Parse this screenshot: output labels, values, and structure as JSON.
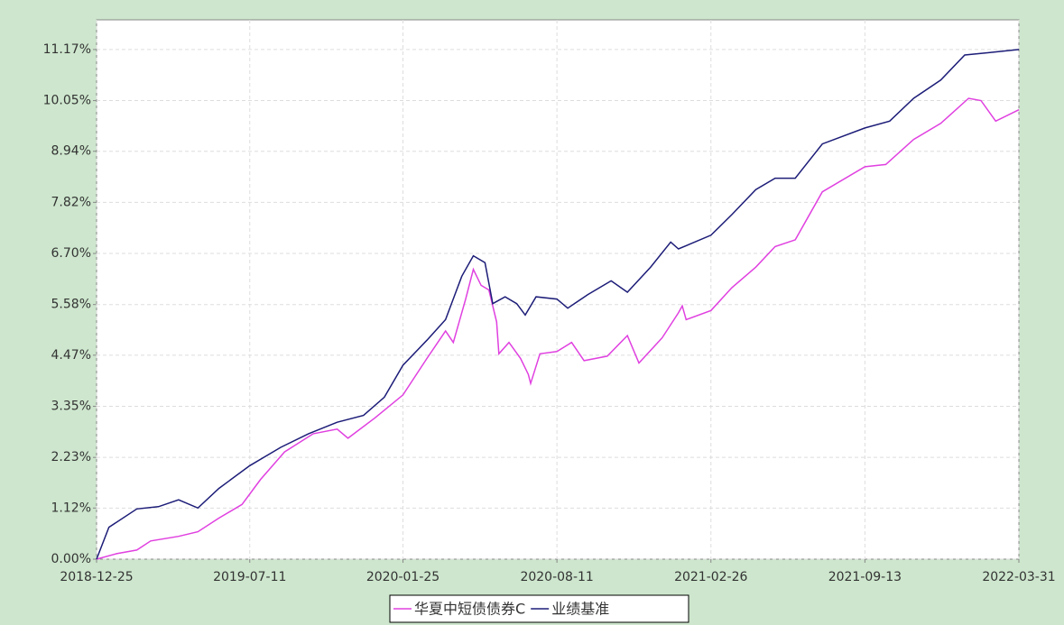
{
  "chart_data": {
    "type": "line",
    "xlim": [
      "2018-12-25",
      "2022-03-31"
    ],
    "xticks": [
      "2018-12-25",
      "2019-07-11",
      "2020-01-25",
      "2020-08-11",
      "2021-02-26",
      "2021-09-13",
      "2022-03-31"
    ],
    "ylim": [
      0,
      11.82
    ],
    "yticks": [
      {
        "value": 0,
        "label": "0.00%"
      },
      {
        "value": 1.12,
        "label": "1.12%"
      },
      {
        "value": 2.23,
        "label": "2.23%"
      },
      {
        "value": 3.35,
        "label": "3.35%"
      },
      {
        "value": 4.47,
        "label": "4.47%"
      },
      {
        "value": 5.58,
        "label": "5.58%"
      },
      {
        "value": 6.7,
        "label": "6.70%"
      },
      {
        "value": 7.82,
        "label": "7.82%"
      },
      {
        "value": 8.94,
        "label": "8.94%"
      },
      {
        "value": 10.05,
        "label": "10.05%"
      },
      {
        "value": 11.17,
        "label": "11.17%"
      }
    ],
    "grid": true,
    "series": [
      {
        "name": "华夏中短债债券C",
        "color": "#e040e0",
        "x": [
          "2018-12-25",
          "2019-01-20",
          "2019-02-15",
          "2019-03-05",
          "2019-04-10",
          "2019-05-05",
          "2019-06-01",
          "2019-07-01",
          "2019-07-25",
          "2019-08-25",
          "2019-10-01",
          "2019-11-01",
          "2019-11-15",
          "2019-12-20",
          "2020-01-25",
          "2020-02-25",
          "2020-03-20",
          "2020-03-30",
          "2020-04-15",
          "2020-04-25",
          "2020-05-05",
          "2020-05-15",
          "2020-05-25",
          "2020-05-28",
          "2020-06-10",
          "2020-06-25",
          "2020-07-05",
          "2020-07-08",
          "2020-07-20",
          "2020-08-11",
          "2020-08-30",
          "2020-09-15",
          "2020-10-15",
          "2020-11-10",
          "2020-11-25",
          "2020-12-25",
          "2021-01-15",
          "2021-01-20",
          "2021-01-25",
          "2021-02-26",
          "2021-03-25",
          "2021-04-25",
          "2021-05-20",
          "2021-06-15",
          "2021-07-20",
          "2021-09-13",
          "2021-10-10",
          "2021-11-15",
          "2021-12-20",
          "2022-01-25",
          "2022-02-10",
          "2022-03-01",
          "2022-03-31"
        ],
        "values": [
          0.0,
          0.12,
          0.2,
          0.4,
          0.5,
          0.6,
          0.9,
          1.2,
          1.75,
          2.35,
          2.75,
          2.85,
          2.65,
          3.1,
          3.6,
          4.4,
          5.0,
          4.75,
          5.7,
          6.35,
          6.0,
          5.9,
          5.2,
          4.5,
          4.75,
          4.4,
          4.05,
          3.85,
          4.5,
          4.55,
          4.75,
          4.35,
          4.45,
          4.9,
          4.3,
          4.85,
          5.4,
          5.55,
          5.25,
          5.45,
          5.95,
          6.4,
          6.85,
          7.0,
          8.05,
          8.6,
          8.65,
          9.2,
          9.55,
          10.1,
          10.05,
          9.6,
          9.85
        ]
      },
      {
        "name": "业绩基准",
        "color": "#1c1c78",
        "x": [
          "2018-12-25",
          "2019-01-10",
          "2019-02-15",
          "2019-03-15",
          "2019-04-10",
          "2019-05-05",
          "2019-06-01",
          "2019-07-11",
          "2019-08-20",
          "2019-09-25",
          "2019-11-01",
          "2019-12-05",
          "2020-01-01",
          "2020-01-25",
          "2020-02-25",
          "2020-03-20",
          "2020-04-10",
          "2020-04-25",
          "2020-05-10",
          "2020-05-20",
          "2020-06-05",
          "2020-06-20",
          "2020-07-01",
          "2020-07-15",
          "2020-08-11",
          "2020-08-25",
          "2020-09-20",
          "2020-10-20",
          "2020-11-10",
          "2020-12-10",
          "2021-01-05",
          "2021-01-15",
          "2021-02-26",
          "2021-03-25",
          "2021-04-25",
          "2021-05-20",
          "2021-06-15",
          "2021-07-20",
          "2021-09-13",
          "2021-10-15",
          "2021-11-15",
          "2021-12-20",
          "2022-01-20",
          "2022-02-20",
          "2022-03-31"
        ],
        "values": [
          0.0,
          0.7,
          1.1,
          1.15,
          1.3,
          1.12,
          1.55,
          2.05,
          2.45,
          2.75,
          3.0,
          3.15,
          3.55,
          4.25,
          4.8,
          5.25,
          6.2,
          6.65,
          6.5,
          5.6,
          5.75,
          5.6,
          5.35,
          5.75,
          5.7,
          5.5,
          5.8,
          6.1,
          5.85,
          6.4,
          6.95,
          6.8,
          7.1,
          7.55,
          8.1,
          8.35,
          8.35,
          9.1,
          9.45,
          9.6,
          10.1,
          10.5,
          11.05,
          11.1,
          11.17
        ]
      }
    ]
  }
}
